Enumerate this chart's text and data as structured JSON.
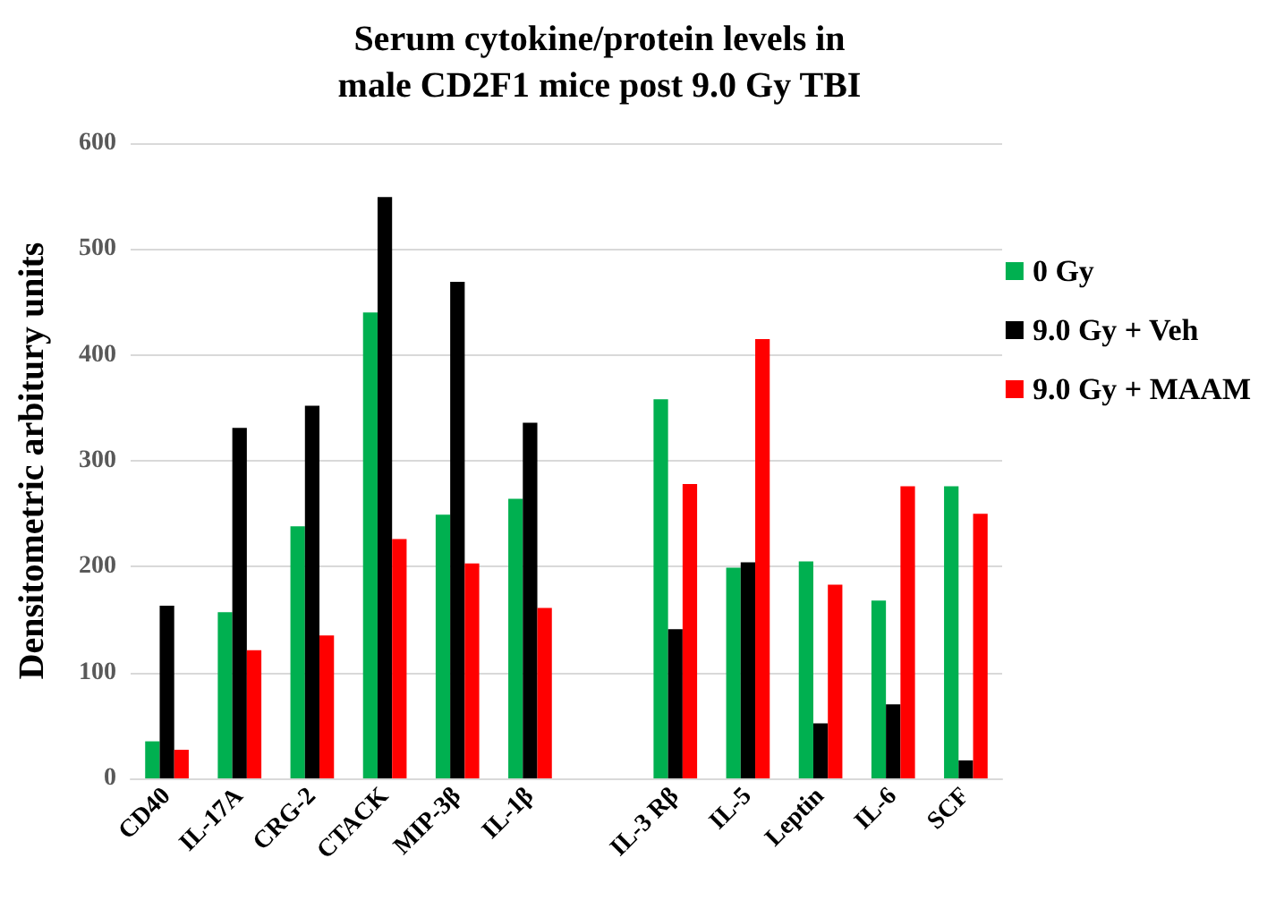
{
  "chart_data": {
    "type": "bar",
    "title": "Serum cytokine/protein levels in\nmale CD2F1 mice post 9.0 Gy TBI",
    "ylabel": "Densitometric arbitury units",
    "categories": [
      "CD40",
      "IL-17A",
      "CRG-2",
      "CTACK",
      "MIP-3β",
      "IL-1β",
      null,
      "IL-3 Rβ",
      "IL-5",
      "Leptin",
      "IL-6",
      "SCF"
    ],
    "series": [
      {
        "name": "0 Gy",
        "color": "#00b050",
        "values": [
          35,
          157,
          238,
          440,
          249,
          264,
          null,
          358,
          199,
          205,
          168,
          276
        ]
      },
      {
        "name": "9.0 Gy + Veh",
        "color": "#000000",
        "values": [
          163,
          331,
          352,
          549,
          469,
          336,
          null,
          141,
          204,
          52,
          70,
          17
        ]
      },
      {
        "name": "9.0 Gy + MAAM",
        "color": "#ff0000",
        "values": [
          27,
          121,
          135,
          226,
          203,
          161,
          null,
          278,
          415,
          183,
          276,
          250
        ]
      }
    ],
    "ylim": [
      0,
      600
    ],
    "yticks": [
      0,
      100,
      200,
      300,
      400,
      500,
      600
    ],
    "grid": "y",
    "legend": "right"
  }
}
